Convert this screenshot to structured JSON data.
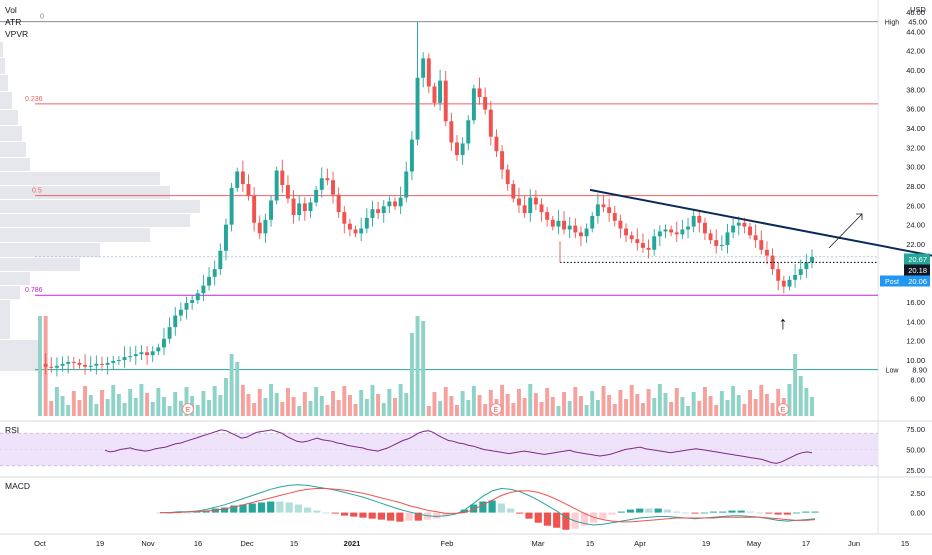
{
  "colors": {
    "up": "#26a69a",
    "down": "#ef5350",
    "up_vol": "#8fd3c8",
    "down_vol": "#f5a19e",
    "vpvr": "#d1d4dc",
    "fib_red": "#f06060",
    "fib_pink": "#c026d3",
    "trendline": "#0b2a5a",
    "rsi": "#7e2a84",
    "rsi_band": "#efe2fb",
    "macd": "#26a69a",
    "signal": "#ef5350",
    "axis_text": "#131722",
    "grid": "#e6e8ee",
    "price_blue": "#2196f3",
    "high_low_line": "#787b86",
    "low_line": "#26a69a"
  },
  "indicators": {
    "vol": "Vol",
    "atr": "ATR",
    "vpvr": "VPVR"
  },
  "currency": "USD",
  "fib_labels": [
    "0",
    "0.236",
    "0.5",
    "0.786"
  ],
  "fib_values": [
    45.0,
    36.5,
    27.0,
    16.7
  ],
  "tags": {
    "high_label": "High",
    "high_value": "45.00",
    "low_label": "Low",
    "low_value": "8.90",
    "last_value": "20.67",
    "close_value": "20.18",
    "post_label": "Post",
    "post_value": "20.06"
  },
  "earnings_marker": "E",
  "annotation_arrow_up": "↑",
  "panes": {
    "rsi_label": "RSI",
    "macd_label": "MACD"
  },
  "chart_data": [
    {
      "type": "candlestick",
      "symbol_axis": "price",
      "ylim": [
        4,
        46
      ],
      "yticks": [
        "46.00",
        "44.00",
        "42.00",
        "40.00",
        "38.00",
        "36.00",
        "34.00",
        "32.00",
        "30.00",
        "28.00",
        "26.00",
        "24.00",
        "22.00",
        "20.00",
        "18.00",
        "16.00",
        "14.00",
        "12.00",
        "10.00",
        "8.00",
        "6.00"
      ],
      "x_labels": [
        "Oct",
        "19",
        "Nov",
        "16",
        "Dec",
        "15",
        "2021",
        "Feb",
        "Mar",
        "15",
        "Apr",
        "19",
        "May",
        "17",
        "Jun",
        "15"
      ],
      "price_path": [
        9.6,
        9.3,
        9.2,
        9.4,
        9.6,
        9.8,
        9.7,
        9.5,
        9.3,
        9.4,
        9.6,
        9.5,
        9.7,
        9.9,
        10.0,
        10.3,
        10.4,
        10.6,
        10.8,
        10.5,
        10.9,
        11.3,
        12.2,
        13.4,
        14.6,
        15.2,
        15.9,
        16.2,
        16.9,
        17.7,
        18.6,
        19.4,
        21.3,
        24.0,
        27.8,
        29.5,
        28.2,
        27.0,
        24.2,
        23.1,
        24.5,
        26.5,
        29.6,
        28.1,
        26.7,
        25.0,
        26.2,
        25.4,
        26.3,
        27.6,
        28.8,
        28.6,
        27.1,
        25.3,
        24.1,
        23.5,
        23.1,
        23.6,
        24.7,
        25.6,
        25.2,
        25.9,
        26.4,
        25.9,
        26.8,
        29.5,
        32.8,
        39.2,
        41.2,
        38.3,
        36.6,
        38.9,
        34.7,
        32.5,
        31.2,
        32.4,
        34.8,
        38.1,
        37.2,
        35.9,
        33.1,
        31.6,
        29.7,
        28.2,
        26.7,
        26.0,
        25.2,
        26.8,
        26.1,
        25.3,
        24.5,
        23.8,
        24.4,
        23.5,
        23.9,
        23.2,
        22.8,
        23.6,
        24.9,
        26.1,
        25.8,
        25.2,
        24.4,
        23.6,
        22.9,
        22.5,
        22.1,
        21.6,
        21.4,
        22.8,
        23.3,
        23.5,
        23.2,
        23.0,
        23.5,
        23.8,
        24.9,
        24.2,
        23.1,
        22.4,
        21.8,
        21.9,
        23.2,
        23.9,
        24.2,
        23.8,
        22.9,
        22.4,
        21.4,
        20.8,
        19.4,
        18.2,
        17.6,
        18.3,
        18.8,
        19.4,
        20.1,
        20.67
      ],
      "series": [
        {
          "name": "High",
          "value": 45.0
        },
        {
          "name": "Low",
          "value": 8.9
        }
      ]
    },
    {
      "type": "bar",
      "name": "Vol",
      "note": "volume bars with spikes at earnings"
    },
    {
      "type": "line",
      "name": "RSI",
      "ylim": [
        20,
        80
      ],
      "yticks": [
        "75.00",
        "50.00",
        "25.00"
      ],
      "band": [
        30,
        70
      ],
      "values": [
        49,
        47,
        48,
        50,
        51,
        52,
        50,
        49,
        48,
        49,
        51,
        52,
        53,
        55,
        57,
        58,
        60,
        62,
        64,
        66,
        68,
        70,
        72,
        74,
        73,
        70,
        67,
        64,
        65,
        68,
        71,
        72,
        73,
        74,
        72,
        70,
        66,
        63,
        60,
        59,
        60,
        62,
        64,
        62,
        61,
        60,
        58,
        57,
        55,
        54,
        53,
        52,
        50,
        49,
        48,
        50,
        52,
        55,
        58,
        61,
        63,
        66,
        70,
        72,
        73,
        71,
        67,
        64,
        61,
        60,
        58,
        57,
        55,
        54,
        52,
        50,
        49,
        48,
        47,
        46,
        45,
        46,
        47,
        48,
        47,
        46,
        45,
        44,
        45,
        46,
        47,
        48,
        49,
        47,
        46,
        45,
        44,
        43,
        42,
        43,
        44,
        46,
        48,
        50,
        51,
        52,
        53,
        51,
        50,
        49,
        48,
        47,
        46,
        47,
        48,
        49,
        50,
        51,
        50,
        49,
        48,
        47,
        46,
        45,
        44,
        43,
        42,
        41,
        40,
        39,
        38,
        36,
        34,
        33,
        35,
        38,
        41,
        44,
        46,
        47,
        46
      ]
    },
    {
      "type": "line",
      "name": "MACD",
      "yticks": [
        "2.50",
        "0.00"
      ],
      "ylim": [
        -2.5,
        4.2
      ],
      "macd": [
        0.0,
        0.0,
        0.1,
        0.1,
        0.2,
        0.4,
        0.7,
        1.0,
        1.4,
        1.8,
        2.2,
        2.6,
        3.0,
        3.3,
        3.5,
        3.6,
        3.5,
        3.3,
        3.1,
        2.9,
        2.6,
        2.3,
        2.0,
        1.6,
        1.2,
        0.8,
        0.4,
        0.1,
        -0.2,
        -0.4,
        -0.5,
        -0.4,
        -0.2,
        0.3,
        1.2,
        2.1,
        2.8,
        3.1,
        3.0,
        2.7,
        2.2,
        1.6,
        0.9,
        0.2,
        -0.6,
        -1.1,
        -1.4,
        -1.6,
        -1.5,
        -1.3,
        -1.1,
        -0.9,
        -0.7,
        -0.6,
        -0.5,
        -0.5,
        -0.6,
        -0.7,
        -0.8,
        -0.7,
        -0.6,
        -0.5,
        -0.4,
        -0.4,
        -0.5,
        -0.6,
        -0.8,
        -1.0,
        -1.1,
        -1.0,
        -0.9,
        -0.8
      ],
      "signal": [
        0.0,
        0.0,
        0.0,
        0.1,
        0.1,
        0.2,
        0.3,
        0.5,
        0.7,
        1.0,
        1.3,
        1.6,
        1.9,
        2.2,
        2.5,
        2.8,
        3.0,
        3.1,
        3.1,
        3.0,
        2.9,
        2.7,
        2.5,
        2.2,
        1.9,
        1.6,
        1.3,
        0.9,
        0.6,
        0.3,
        0.1,
        -0.1,
        -0.1,
        0.0,
        0.4,
        1.0,
        1.6,
        2.2,
        2.6,
        2.8,
        2.8,
        2.6,
        2.2,
        1.7,
        1.1,
        0.5,
        -0.1,
        -0.6,
        -0.9,
        -1.1,
        -1.2,
        -1.2,
        -1.1,
        -1.0,
        -0.9,
        -0.8,
        -0.7,
        -0.7,
        -0.7,
        -0.7,
        -0.7,
        -0.6,
        -0.6,
        -0.6,
        -0.6,
        -0.6,
        -0.7,
        -0.8,
        -0.9,
        -1.0,
        -1.0,
        -0.9
      ]
    }
  ]
}
